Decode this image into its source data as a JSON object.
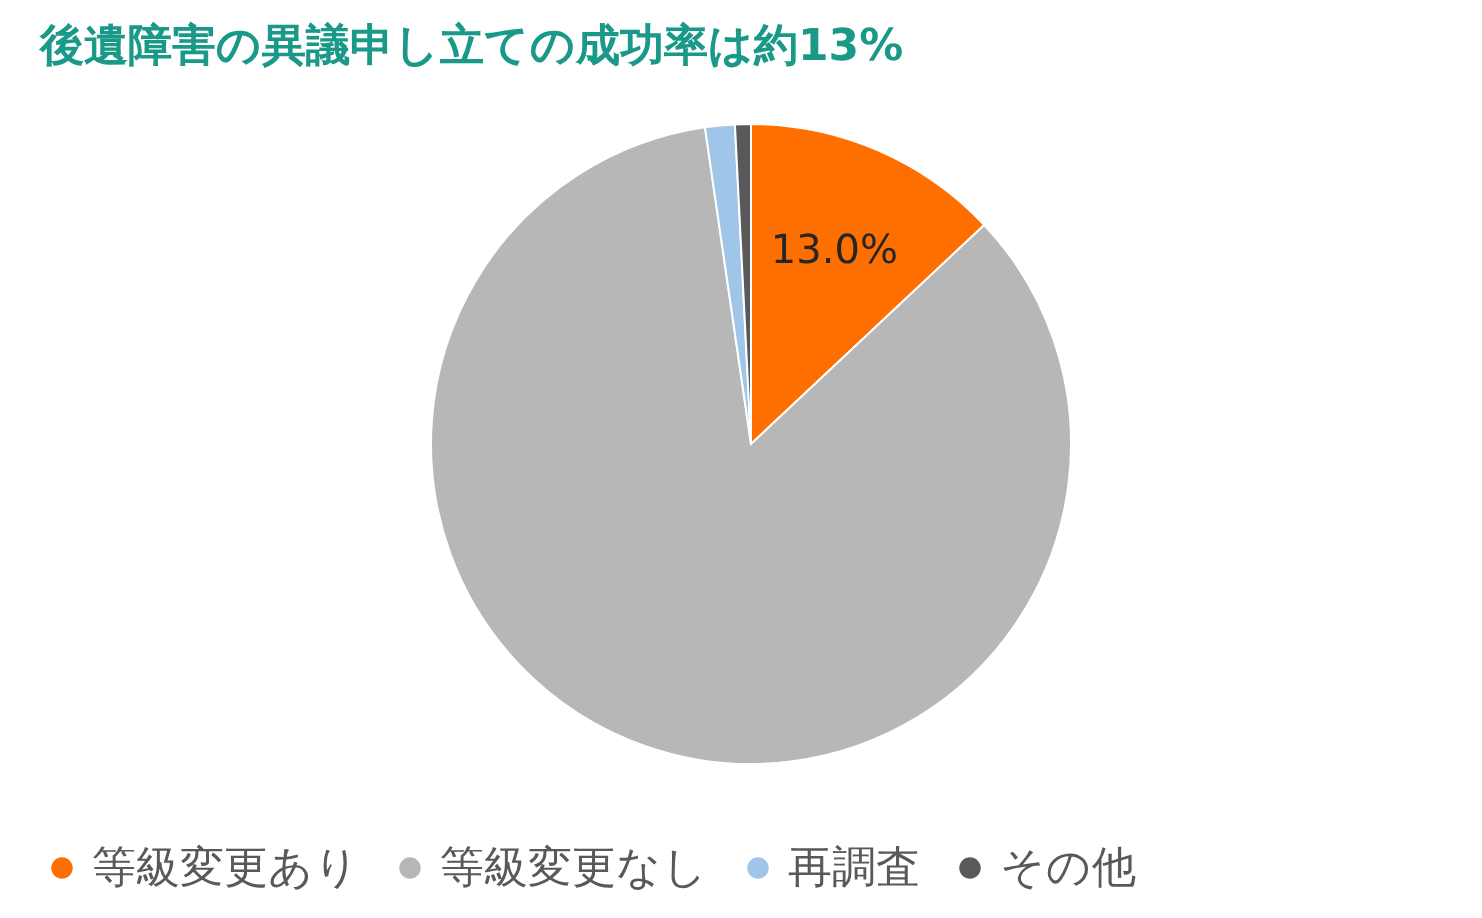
{
  "chart_data": {
    "type": "pie",
    "title": "後遺障害の異議申し立ての成功率は約13%",
    "categories": [
      "等級変更あり",
      "等級変更なし",
      "再調査",
      "その他"
    ],
    "values": [
      13.0,
      84.7,
      1.5,
      0.8
    ],
    "colors": [
      "#ff6f00",
      "#b7b7b7",
      "#9fc5e8",
      "#595959"
    ],
    "value_labels": [
      "13.0%",
      null,
      null,
      null
    ],
    "legend": "bottom"
  }
}
